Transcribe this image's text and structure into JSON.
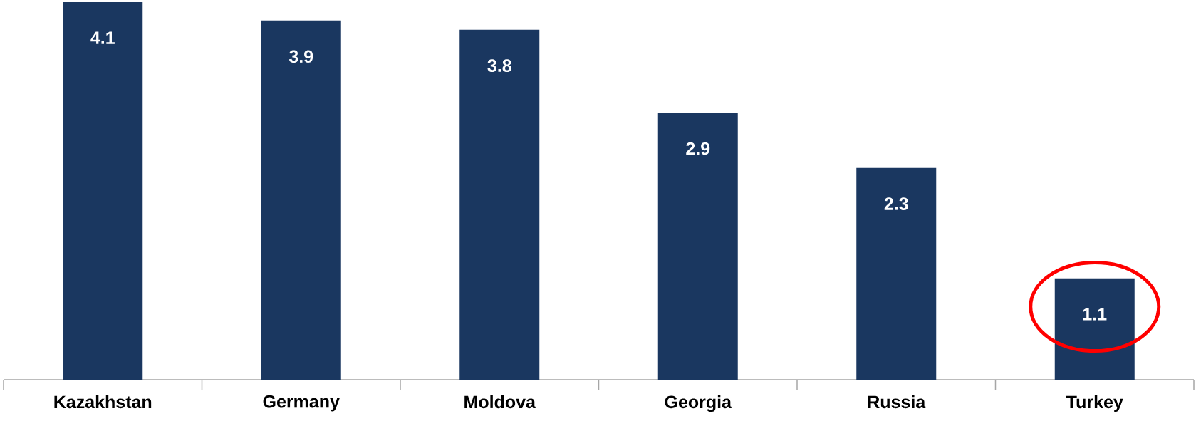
{
  "chart_data": {
    "type": "bar",
    "categories": [
      "Kazakhstan",
      "Germany",
      "Moldova",
      "Georgia",
      "Russia",
      "Turkey"
    ],
    "values": [
      4.1,
      3.9,
      3.8,
      2.9,
      2.3,
      1.1
    ],
    "color": "#1a3760",
    "ylim": [
      0,
      4.1
    ],
    "data_labels": true
  }
}
